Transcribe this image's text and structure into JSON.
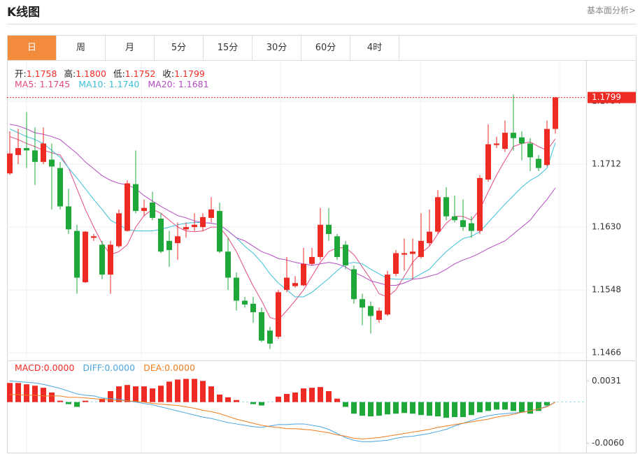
{
  "header": {
    "title": "K线图",
    "link": "基本面分析>"
  },
  "tabs": [
    "日",
    "周",
    "月",
    "5分",
    "15分",
    "30分",
    "60分",
    "4时"
  ],
  "active_tab": 0,
  "chart_data": [
    {
      "type": "candlestick",
      "info": [
        {
          "label": "开:",
          "value": "1.1758"
        },
        {
          "label": "高:",
          "value": "1.1800"
        },
        {
          "label": "低:",
          "value": "1.1752"
        },
        {
          "label": "收:",
          "value": "1.1799"
        }
      ],
      "up_color": "#ee2a24",
      "down_color": "#1fa83a",
      "categories": [
        null,
        null,
        null,
        null,
        null,
        null,
        null,
        null,
        null,
        null,
        null,
        null,
        null,
        null,
        null,
        null,
        null,
        null,
        null,
        null,
        null,
        null,
        null,
        null,
        null,
        null,
        null,
        null,
        null,
        null,
        null,
        null,
        null,
        null,
        null,
        null,
        null,
        null,
        null,
        null,
        null,
        null,
        null,
        null,
        null,
        null,
        null,
        null,
        null,
        null,
        null,
        null,
        null,
        null,
        null,
        null,
        null,
        null,
        null,
        null,
        null,
        null,
        null,
        null,
        null,
        null
      ],
      "open": [
        1.17,
        1.1724,
        1.1733,
        1.173,
        1.1715,
        1.1718,
        1.1707,
        1.1657,
        1.1625,
        1.1558,
        1.1616,
        1.1607,
        1.1568,
        1.1605,
        1.1625,
        1.1686,
        1.1651,
        1.1662,
        1.1641,
        1.1612,
        1.1609,
        1.1627,
        1.163,
        1.163,
        1.1642,
        1.1651,
        1.1598,
        1.1564,
        1.1534,
        1.153,
        1.1519,
        1.1495,
        1.1487,
        1.1548,
        1.1553,
        1.1554,
        1.1582,
        1.1591,
        1.1633,
        1.1618,
        1.1607,
        1.1575,
        1.1536,
        1.1527,
        1.1509,
        1.1516,
        1.1569,
        1.1594,
        1.1595,
        1.1591,
        1.1609,
        1.1624,
        1.1669,
        1.1644,
        1.1639,
        1.1635,
        1.1625,
        1.1692,
        1.1737,
        1.1732,
        1.1753,
        1.1747,
        1.1739,
        1.1719,
        1.1711,
        1.1758
      ],
      "high": [
        1.1755,
        1.1758,
        1.178,
        1.176,
        1.176,
        1.1739,
        1.1715,
        1.168,
        1.1633,
        1.1625,
        1.1621,
        1.1612,
        1.1612,
        1.1653,
        1.1691,
        1.173,
        1.1666,
        1.1676,
        1.1648,
        1.1625,
        1.1636,
        1.1636,
        1.1648,
        1.1648,
        1.1669,
        1.1662,
        1.1616,
        1.1571,
        1.1539,
        1.1539,
        1.1525,
        1.15,
        1.1548,
        1.1591,
        1.1566,
        1.1603,
        1.1603,
        1.1655,
        1.1655,
        1.1621,
        1.1612,
        1.158,
        1.1543,
        1.1533,
        1.1525,
        1.1573,
        1.16,
        1.1615,
        1.1615,
        1.1648,
        1.1653,
        1.1678,
        1.1682,
        1.1671,
        1.1666,
        1.1644,
        1.1698,
        1.1764,
        1.1748,
        1.1769,
        1.1803,
        1.1755,
        1.1746,
        1.1724,
        1.1769,
        1.18
      ],
      "low": [
        1.1698,
        1.1712,
        1.1707,
        1.1685,
        1.1712,
        1.1653,
        1.1653,
        1.1621,
        1.1543,
        1.1557,
        1.1612,
        1.1562,
        1.1543,
        1.1603,
        1.1624,
        1.1648,
        1.1644,
        1.1639,
        1.1596,
        1.1578,
        1.1587,
        1.1616,
        1.1625,
        1.1625,
        1.1636,
        1.1596,
        1.1548,
        1.1521,
        1.1525,
        1.1505,
        1.148,
        1.1471,
        1.1484,
        1.1545,
        1.1551,
        1.1553,
        1.158,
        1.1587,
        1.1612,
        1.1587,
        1.1575,
        1.153,
        1.1502,
        1.1491,
        1.1505,
        1.1514,
        1.1566,
        1.1573,
        1.1562,
        1.1589,
        1.1605,
        1.1621,
        1.1639,
        1.1636,
        1.1625,
        1.1616,
        1.1621,
        1.1689,
        1.1733,
        1.1728,
        1.173,
        1.1717,
        1.1703,
        1.1703,
        1.1709,
        1.1752
      ],
      "close": [
        1.1726,
        1.1733,
        1.173,
        1.1715,
        1.1739,
        1.1709,
        1.1657,
        1.1627,
        1.1564,
        1.1624,
        1.1618,
        1.1568,
        1.1607,
        1.1648,
        1.1687,
        1.1651,
        1.1655,
        1.1642,
        1.1598,
        1.16,
        1.1618,
        1.163,
        1.1633,
        1.1643,
        1.1653,
        1.1598,
        1.1564,
        1.1534,
        1.1529,
        1.1519,
        1.1482,
        1.1478,
        1.1545,
        1.1564,
        1.1557,
        1.1582,
        1.1591,
        1.1633,
        1.1621,
        1.1591,
        1.158,
        1.1536,
        1.1525,
        1.1514,
        1.1521,
        1.1568,
        1.1596,
        1.1596,
        1.1598,
        1.1612,
        1.1624,
        1.1669,
        1.1644,
        1.1639,
        1.163,
        1.1625,
        1.1694,
        1.1738,
        1.1739,
        1.1753,
        1.1746,
        1.1739,
        1.1721,
        1.1707,
        1.1758,
        1.1799
      ],
      "series": [
        {
          "name": "MA5: 1.1745",
          "color": "#e44a84",
          "values": [
            1.1748,
            1.1744,
            1.1739,
            1.1735,
            1.173,
            1.1727,
            1.1724,
            1.1707,
            1.168,
            1.1653,
            1.163,
            1.1609,
            1.1594,
            1.1598,
            1.1607,
            1.163,
            1.1645,
            1.1653,
            1.1648,
            1.1639,
            1.163,
            1.1625,
            1.1624,
            1.1625,
            1.163,
            1.163,
            1.1616,
            1.1598,
            1.1575,
            1.1553,
            1.1534,
            1.1512,
            1.1509,
            1.1521,
            1.1534,
            1.1548,
            1.1566,
            1.1584,
            1.1598,
            1.1603,
            1.1603,
            1.1594,
            1.1578,
            1.1562,
            1.1543,
            1.1539,
            1.1548,
            1.1566,
            1.1584,
            1.1596,
            1.1605,
            1.1621,
            1.1635,
            1.1644,
            1.1644,
            1.1639,
            1.1653,
            1.1676,
            1.1698,
            1.1717,
            1.1735,
            1.1739,
            1.1741,
            1.1735,
            1.173,
            1.1745
          ]
        },
        {
          "name": "MA10: 1.1740",
          "color": "#3cbfd8",
          "values": [
            1.1758,
            1.1753,
            1.1748,
            1.1744,
            1.1739,
            1.173,
            1.1721,
            1.1707,
            1.1694,
            1.168,
            1.1666,
            1.1653,
            1.1639,
            1.1633,
            1.1627,
            1.1625,
            1.1625,
            1.1625,
            1.1627,
            1.163,
            1.1633,
            1.1635,
            1.1636,
            1.1636,
            1.1635,
            1.1633,
            1.1625,
            1.1616,
            1.1605,
            1.1596,
            1.1584,
            1.1569,
            1.1557,
            1.1548,
            1.1539,
            1.1539,
            1.1545,
            1.1554,
            1.1563,
            1.1573,
            1.1582,
            1.1584,
            1.1582,
            1.1575,
            1.1569,
            1.1563,
            1.1562,
            1.1562,
            1.1563,
            1.1569,
            1.1575,
            1.1587,
            1.1598,
            1.1607,
            1.1615,
            1.1618,
            1.1624,
            1.1636,
            1.1648,
            1.166,
            1.1671,
            1.1682,
            1.1691,
            1.1697,
            1.1707,
            1.174
          ]
        },
        {
          "name": "MA20: 1.1681",
          "color": "#b44cc2",
          "values": [
            1.1764,
            1.1762,
            1.1758,
            1.1753,
            1.1751,
            1.1748,
            1.1744,
            1.1735,
            1.1726,
            1.1715,
            1.1706,
            1.1697,
            1.1691,
            1.1687,
            1.1685,
            1.168,
            1.1671,
            1.1664,
            1.1657,
            1.1651,
            1.1645,
            1.1642,
            1.1638,
            1.1636,
            1.1635,
            1.1633,
            1.1625,
            1.1616,
            1.1612,
            1.1605,
            1.1598,
            1.1594,
            1.1589,
            1.1587,
            1.1584,
            1.1582,
            1.158,
            1.1582,
            1.1584,
            1.1582,
            1.1578,
            1.1571,
            1.1566,
            1.156,
            1.1557,
            1.1554,
            1.1554,
            1.1557,
            1.1562,
            1.1563,
            1.1566,
            1.1569,
            1.1575,
            1.1582,
            1.1587,
            1.1591,
            1.1596,
            1.1602,
            1.1607,
            1.1612,
            1.1621,
            1.163,
            1.1639,
            1.1653,
            1.1666,
            1.1681
          ]
        }
      ],
      "last_price": {
        "value": 1.1799,
        "label": "1.1799"
      },
      "ylim": [
        1.1457,
        1.1846
      ],
      "yticks": [
        1.1466,
        1.1548,
        {
          "value": 1.163,
          "label": "1.1630"
        },
        1.1712,
        1.1794
      ],
      "grid": true
    },
    {
      "type": "macd",
      "up_color": "#ee2a24",
      "down_color": "#1fa83a",
      "categories": [
        null,
        null,
        null,
        null,
        null,
        null,
        null,
        null,
        null,
        null,
        null,
        null,
        null,
        null,
        null,
        null,
        null,
        null,
        null,
        null,
        null,
        null,
        null,
        null,
        null,
        null,
        null,
        null,
        null,
        null,
        null,
        null,
        null,
        null,
        null,
        null,
        null,
        null,
        null,
        null,
        null,
        null,
        null,
        null,
        null,
        null,
        null,
        null,
        null,
        null,
        null,
        null,
        null,
        null,
        null,
        null,
        null,
        null,
        null,
        null,
        null,
        null,
        null,
        null,
        null,
        null
      ],
      "series": [
        {
          "name": "MACD:0.0000",
          "style": "bar",
          "color": "#ee2a24",
          "values": [
            0.0028,
            0.0028,
            0.0026,
            0.0024,
            0.0021,
            0.0014,
            0.0002,
            -0.0003,
            -0.0007,
            0.0002,
            0.0,
            0.0005,
            0.0016,
            0.0023,
            0.0025,
            0.0023,
            0.0023,
            0.002,
            0.0024,
            0.003,
            0.0033,
            0.0034,
            0.0034,
            0.0031,
            0.0023,
            0.0011,
            0.0007,
            0.0003,
            0.0,
            -0.0003,
            -0.0005,
            0.0,
            0.0008,
            0.0012,
            0.0014,
            0.002,
            0.0021,
            0.0022,
            0.0016,
            0.0005,
            -0.0007,
            -0.0017,
            -0.002,
            -0.0021,
            -0.002,
            -0.0018,
            -0.0017,
            -0.0016,
            -0.0017,
            -0.0019,
            -0.002,
            -0.0021,
            -0.0023,
            -0.0022,
            -0.0022,
            -0.0019,
            -0.0015,
            -0.0013,
            -0.0011,
            -0.0011,
            -0.0013,
            -0.0015,
            -0.0017,
            -0.0013,
            -0.0005,
            0.0
          ]
        },
        {
          "name": "DIFF:0.0000",
          "style": "line",
          "color": "#4ba6e0",
          "values": [
            0.0031,
            0.003,
            0.0029,
            0.0028,
            0.0026,
            0.0023,
            0.002,
            0.0016,
            0.0012,
            0.001,
            0.0009,
            0.0006,
            0.0005,
            0.0004,
            0.0002,
            0.0,
            -0.0002,
            -0.0004,
            -0.0007,
            -0.001,
            -0.0013,
            -0.0016,
            -0.0019,
            -0.0022,
            -0.0024,
            -0.0027,
            -0.003,
            -0.0032,
            -0.0034,
            -0.0036,
            -0.0037,
            -0.0035,
            -0.0033,
            -0.0033,
            -0.0032,
            -0.0032,
            -0.0034,
            -0.0036,
            -0.004,
            -0.0046,
            -0.0052,
            -0.0056,
            -0.0058,
            -0.0058,
            -0.0057,
            -0.0056,
            -0.0053,
            -0.0051,
            -0.005,
            -0.0048,
            -0.0046,
            -0.0043,
            -0.004,
            -0.0035,
            -0.0031,
            -0.0027,
            -0.0023,
            -0.002,
            -0.0018,
            -0.0017,
            -0.0016,
            -0.0015,
            -0.0013,
            -0.001,
            -0.0006,
            0.0
          ]
        },
        {
          "name": "DEA:0.0000",
          "style": "line",
          "color": "#f07d1e",
          "values": [
            0.0011,
            0.0011,
            0.001,
            0.001,
            0.0009,
            0.0009,
            0.0009,
            0.0007,
            0.0007,
            0.0006,
            0.0005,
            0.0004,
            0.0003,
            0.0002,
            0.0002,
            0.0001,
            0.0,
            -0.0002,
            -0.0003,
            -0.0004,
            -0.0005,
            -0.0007,
            -0.0009,
            -0.0012,
            -0.0014,
            -0.0017,
            -0.0021,
            -0.0025,
            -0.0028,
            -0.0031,
            -0.0034,
            -0.0036,
            -0.0037,
            -0.0039,
            -0.0039,
            -0.004,
            -0.0041,
            -0.0043,
            -0.0045,
            -0.0048,
            -0.005,
            -0.0053,
            -0.0054,
            -0.0053,
            -0.0052,
            -0.005,
            -0.0048,
            -0.0046,
            -0.0044,
            -0.0042,
            -0.004,
            -0.0037,
            -0.0035,
            -0.0033,
            -0.0031,
            -0.0029,
            -0.0027,
            -0.0025,
            -0.0022,
            -0.002,
            -0.0018,
            -0.0015,
            -0.0013,
            -0.001,
            -0.0007,
            0.0
          ]
        }
      ],
      "ylim": [
        -0.0074,
        0.006
      ],
      "yticks": [
        0.0031,
        {
          "value": -0.006,
          "label": "-0.0060"
        }
      ]
    }
  ]
}
